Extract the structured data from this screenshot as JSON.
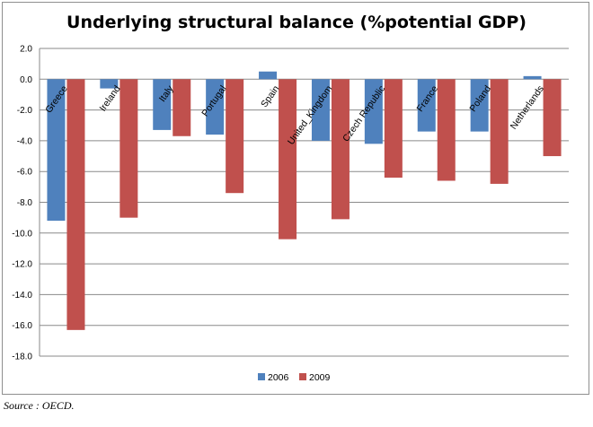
{
  "chart_data": {
    "type": "bar",
    "title": "Underlying structural balance (%potential GDP)",
    "xlabel": "",
    "ylabel": "",
    "categories": [
      "Greece",
      "Ireland",
      "Italy",
      "Portugal",
      "Spain",
      "United_Kingdom",
      "Czech Republic",
      "France",
      "Poland",
      "Netherlands"
    ],
    "series": [
      {
        "name": "2006",
        "color": "#4f81bd",
        "values": [
          -9.2,
          -0.6,
          -3.3,
          -3.6,
          0.5,
          -4.0,
          -4.2,
          -3.4,
          -3.4,
          0.2
        ]
      },
      {
        "name": "2009",
        "color": "#c0504d",
        "values": [
          -16.3,
          -9.0,
          -3.7,
          -7.4,
          -10.4,
          -9.1,
          -6.4,
          -6.6,
          -6.8,
          -5.0
        ]
      }
    ],
    "ylim": [
      -18,
      2
    ],
    "yticks": [
      "2.0",
      "0.0",
      "-2.0",
      "-4.0",
      "-6.0",
      "-8.0",
      "-10.0",
      "-12.0",
      "-14.0",
      "-16.0",
      "-18.0"
    ],
    "ytick_values": [
      2,
      0,
      -2,
      -4,
      -6,
      -8,
      -10,
      -12,
      -14,
      -16,
      -18
    ],
    "grid": true,
    "legend": "bottom"
  },
  "source": "Source : OECD."
}
